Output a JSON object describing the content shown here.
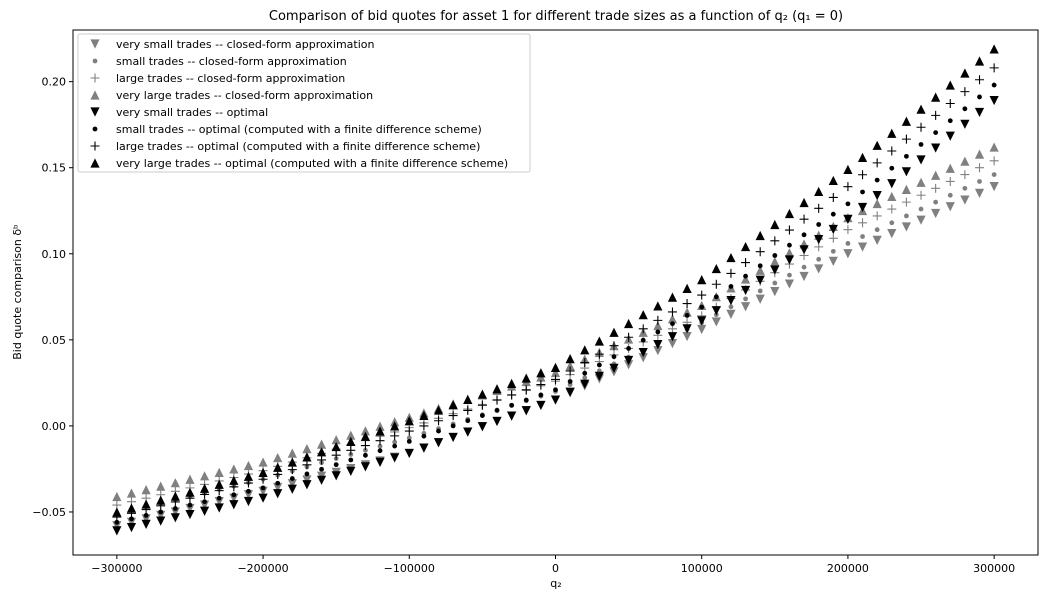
{
  "chart_data": {
    "type": "scatter",
    "title": "Comparison of bid quotes for asset 1 for different trade sizes as a function of q₂ (q₁ = 0)",
    "xlabel": "q₂",
    "ylabel": "Bid quote comparison δᵇ",
    "xlim": [
      -330000,
      330000
    ],
    "ylim": [
      -0.075,
      0.23
    ],
    "xticks": [
      -300000,
      -200000,
      -100000,
      0,
      100000,
      200000,
      300000
    ],
    "xtick_labels": [
      "−300000",
      "−200000",
      "−100000",
      "0",
      "100000",
      "200000",
      "300000"
    ],
    "yticks": [
      -0.05,
      0.0,
      0.05,
      0.1,
      0.15,
      0.2
    ],
    "ytick_labels": [
      "−0.05",
      "0.00",
      "0.05",
      "0.10",
      "0.15",
      "0.20"
    ],
    "legend_position": "top-left",
    "x": {
      "start": -300000,
      "stop": 300000,
      "count": 61
    },
    "series": [
      {
        "name": "very small trades -- closed-form approximation",
        "marker": "triangle-down",
        "color": "#808080",
        "y_anchors": [
          [
            -300000,
            -0.058
          ],
          [
            -200000,
            -0.038
          ],
          [
            -100000,
            -0.016
          ],
          [
            0,
            0.015
          ],
          [
            100000,
            0.056
          ],
          [
            200000,
            0.1
          ],
          [
            300000,
            0.139
          ]
        ]
      },
      {
        "name": "small trades -- closed-form approximation",
        "marker": "dot",
        "color": "#808080",
        "y_anchors": [
          [
            -300000,
            -0.051
          ],
          [
            -200000,
            -0.031
          ],
          [
            -100000,
            -0.007
          ],
          [
            0,
            0.02
          ],
          [
            100000,
            0.06
          ],
          [
            200000,
            0.106
          ],
          [
            300000,
            0.146
          ]
        ]
      },
      {
        "name": "large trades -- closed-form approximation",
        "marker": "plus",
        "color": "#808080",
        "y_anchors": [
          [
            -300000,
            -0.046
          ],
          [
            -200000,
            -0.026
          ],
          [
            -100000,
            -0.001
          ],
          [
            0,
            0.026
          ],
          [
            100000,
            0.064
          ],
          [
            200000,
            0.114
          ],
          [
            300000,
            0.154
          ]
        ]
      },
      {
        "name": "very large trades -- closed-form approximation",
        "marker": "triangle-up",
        "color": "#808080",
        "y_anchors": [
          [
            -300000,
            -0.041
          ],
          [
            -200000,
            -0.021
          ],
          [
            -100000,
            0.005
          ],
          [
            0,
            0.031
          ],
          [
            100000,
            0.07
          ],
          [
            200000,
            0.121
          ],
          [
            300000,
            0.162
          ]
        ]
      },
      {
        "name": "very small trades -- optimal",
        "marker": "triangle-down",
        "color": "#000000",
        "y_anchors": [
          [
            -300000,
            -0.061
          ],
          [
            -200000,
            -0.042
          ],
          [
            -100000,
            -0.016
          ],
          [
            0,
            0.015
          ],
          [
            100000,
            0.061
          ],
          [
            200000,
            0.12
          ],
          [
            300000,
            0.189
          ]
        ]
      },
      {
        "name": "small trades -- optimal (computed with a finite difference scheme)",
        "marker": "dot",
        "color": "#000000",
        "y_anchors": [
          [
            -300000,
            -0.056
          ],
          [
            -200000,
            -0.036
          ],
          [
            -100000,
            -0.009
          ],
          [
            0,
            0.021
          ],
          [
            100000,
            0.069
          ],
          [
            200000,
            0.129
          ],
          [
            300000,
            0.198
          ]
        ]
      },
      {
        "name": "large trades -- optimal (computed with a finite difference scheme)",
        "marker": "plus",
        "color": "#000000",
        "y_anchors": [
          [
            -300000,
            -0.053
          ],
          [
            -200000,
            -0.031
          ],
          [
            -100000,
            -0.003
          ],
          [
            0,
            0.027
          ],
          [
            100000,
            0.076
          ],
          [
            200000,
            0.139
          ],
          [
            300000,
            0.208
          ]
        ]
      },
      {
        "name": "very large trades -- optimal (computed with a finite difference scheme)",
        "marker": "triangle-up",
        "color": "#000000",
        "y_anchors": [
          [
            -300000,
            -0.05
          ],
          [
            -200000,
            -0.027
          ],
          [
            -100000,
            0.003
          ],
          [
            0,
            0.034
          ],
          [
            100000,
            0.085
          ],
          [
            200000,
            0.149
          ],
          [
            300000,
            0.219
          ]
        ]
      }
    ]
  }
}
